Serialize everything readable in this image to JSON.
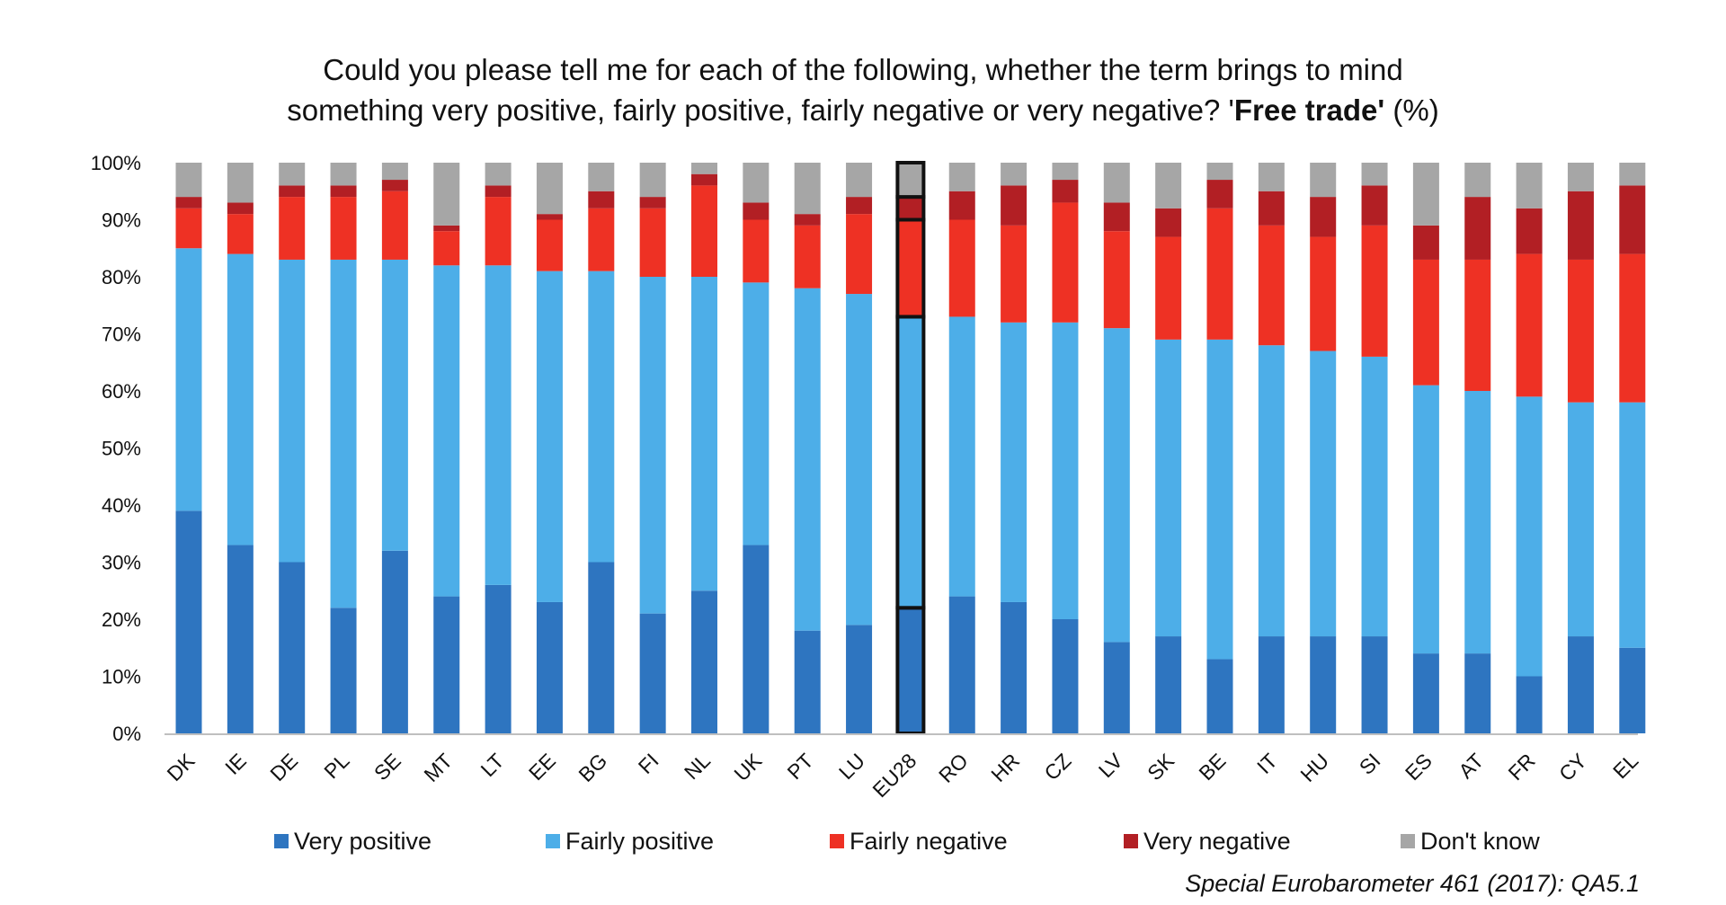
{
  "chart_data": {
    "type": "bar",
    "stacked": true,
    "title_line1": "Could you please tell me for each of the following, whether the term brings to mind",
    "title_line2_prefix": "something very positive, fairly positive, fairly negative or very negative? '",
    "title_line2_bold": "Free trade'",
    "title_line2_suffix": " (%)",
    "xlabel": "",
    "ylabel": "",
    "ylim": [
      0,
      100
    ],
    "y_ticks": [
      "0%",
      "10%",
      "20%",
      "30%",
      "40%",
      "50%",
      "60%",
      "70%",
      "80%",
      "90%",
      "100%"
    ],
    "highlighted_category": "EU28",
    "categories": [
      "DK",
      "IE",
      "DE",
      "PL",
      "SE",
      "MT",
      "LT",
      "EE",
      "BG",
      "FI",
      "NL",
      "UK",
      "PT",
      "LU",
      "EU28",
      "RO",
      "HR",
      "CZ",
      "LV",
      "SK",
      "BE",
      "IT",
      "HU",
      "SI",
      "ES",
      "AT",
      "FR",
      "CY",
      "EL"
    ],
    "series": [
      {
        "name": "Very positive",
        "color": "#2e75c0",
        "values": [
          39,
          33,
          30,
          22,
          32,
          24,
          26,
          23,
          30,
          21,
          25,
          33,
          18,
          19,
          22,
          24,
          23,
          20,
          16,
          17,
          13,
          17,
          17,
          17,
          14,
          14,
          10,
          17,
          15
        ]
      },
      {
        "name": "Fairly positive",
        "color": "#4daee8",
        "values": [
          46,
          51,
          53,
          61,
          51,
          58,
          56,
          58,
          51,
          59,
          55,
          46,
          60,
          58,
          51,
          49,
          49,
          52,
          55,
          52,
          56,
          51,
          50,
          49,
          47,
          46,
          49,
          41,
          43
        ]
      },
      {
        "name": "Fairly negative",
        "color": "#ee3124",
        "values": [
          7,
          7,
          11,
          11,
          12,
          6,
          12,
          9,
          11,
          12,
          16,
          11,
          11,
          14,
          17,
          17,
          17,
          21,
          17,
          18,
          23,
          21,
          20,
          23,
          22,
          23,
          25,
          25,
          26
        ]
      },
      {
        "name": "Very negative",
        "color": "#b21f24",
        "values": [
          2,
          2,
          2,
          2,
          2,
          1,
          2,
          1,
          3,
          2,
          2,
          3,
          2,
          3,
          4,
          5,
          7,
          4,
          5,
          5,
          5,
          6,
          7,
          7,
          6,
          11,
          8,
          12,
          12
        ]
      },
      {
        "name": "Don't know",
        "color": "#a6a6a6",
        "values": [
          6,
          7,
          4,
          4,
          3,
          11,
          4,
          9,
          5,
          6,
          2,
          7,
          9,
          6,
          6,
          5,
          4,
          3,
          7,
          8,
          3,
          5,
          6,
          4,
          11,
          6,
          8,
          5,
          4
        ]
      }
    ],
    "legend_position": "bottom"
  },
  "source": "Special Eurobarometer 461 (2017): QA5.1"
}
